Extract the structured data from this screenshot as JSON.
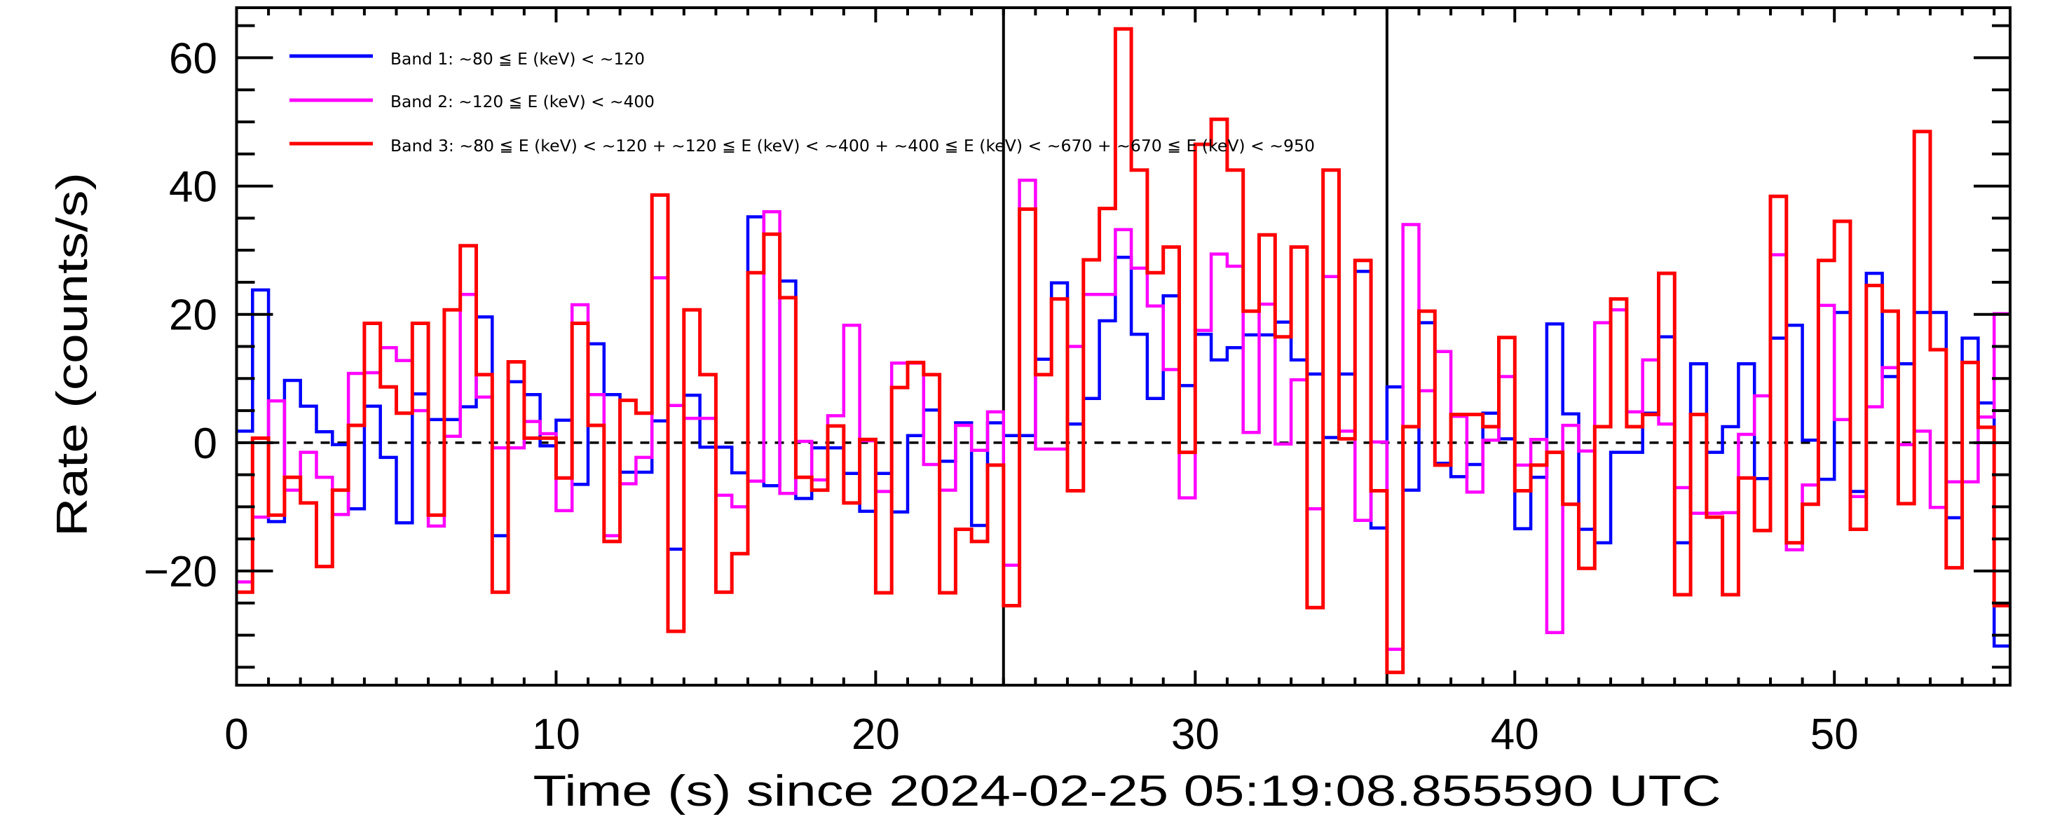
{
  "chart_data": {
    "type": "line",
    "step": true,
    "title": "",
    "xlabel": "Time (s) since 2024-02-25 05:19:08.855590 UTC",
    "ylabel": "Rate (counts/s)",
    "xlim": [
      0,
      55.5
    ],
    "ylim": [
      -37.8,
      67.8
    ],
    "grid": false,
    "bin_width": 0.5,
    "x_start": 0,
    "x_ticks": [
      {
        "value": 0,
        "label": "0"
      },
      {
        "value": 10,
        "label": "10"
      },
      {
        "value": 20,
        "label": "20"
      },
      {
        "value": 30,
        "label": "30"
      },
      {
        "value": 40,
        "label": "40"
      },
      {
        "value": 50,
        "label": "50"
      }
    ],
    "y_ticks": [
      {
        "value": -20,
        "label": "−20"
      },
      {
        "value": 0,
        "label": "0"
      },
      {
        "value": 20,
        "label": "20"
      },
      {
        "value": 40,
        "label": "40"
      },
      {
        "value": 60,
        "label": "60"
      }
    ],
    "x_minor_step": 1,
    "y_minor_step": 5,
    "reference_lines": {
      "horizontal_dashed": 0,
      "vertical": [
        24,
        36
      ]
    },
    "legend_placement": "top-left",
    "series": [
      {
        "name": "Band 1: ~80 ≦ E (keV) < ~120",
        "color": "#0000ff",
        "values": [
          1.8,
          23.8,
          -12.3,
          9.7,
          5.7,
          1.7,
          -0.3,
          -10.3,
          5.7,
          -2.3,
          -12.5,
          7.6,
          3.6,
          3.6,
          5.6,
          19.6,
          -14.5,
          9.5,
          7.5,
          -0.5,
          3.5,
          -6.5,
          15.4,
          7.5,
          -4.6,
          -4.6,
          3.4,
          -16.6,
          7.4,
          -0.7,
          -0.7,
          -4.7,
          35.2,
          -6.7,
          25.2,
          -8.7,
          -0.8,
          -0.8,
          -4.8,
          -10.7,
          -4.8,
          -10.8,
          1.1,
          5.1,
          -2.9,
          3.1,
          -12.9,
          3.1,
          1.1,
          1.1,
          13.0,
          24.9,
          2.9,
          6.9,
          19.0,
          28.9,
          16.9,
          6.9,
          22.9,
          8.9,
          16.9,
          12.9,
          14.8,
          16.8,
          16.8,
          18.8,
          12.9,
          10.7,
          0.8,
          10.7,
          26.7,
          -13.3,
          8.7,
          -7.4,
          18.7,
          -3.2,
          -5.3,
          -3.4,
          4.6,
          0.6,
          -13.4,
          -5.4,
          18.5,
          4.5,
          -13.5,
          -15.6,
          -1.5,
          -1.5,
          4.6,
          16.5,
          -15.6,
          12.3,
          -1.5,
          2.5,
          12.3,
          -5.6,
          16.3,
          18.3,
          0.4,
          -5.7,
          20.3,
          -7.6,
          26.4,
          10.3,
          12.3,
          20.3,
          20.3,
          -11.7,
          16.3,
          6.2,
          -31.7
        ]
      },
      {
        "name": "Band 2: ~120 ≦ E (keV) < ~400",
        "color": "#ff00ff",
        "values": [
          -21.7,
          -11.6,
          6.5,
          -7.4,
          -1.5,
          -5.4,
          -11.2,
          10.8,
          10.9,
          14.8,
          12.8,
          5.0,
          -13.0,
          1.0,
          23.1,
          7.1,
          -0.8,
          -0.8,
          3.3,
          1.4,
          -10.6,
          21.5,
          7.5,
          -14.5,
          -6.4,
          -2.3,
          25.7,
          5.8,
          3.8,
          3.8,
          -8.2,
          -10.0,
          -6.0,
          36.0,
          -7.9,
          0.2,
          -5.8,
          4.2,
          18.3,
          0.3,
          -7.6,
          12.4,
          12.4,
          -3.4,
          -7.4,
          2.7,
          -1.2,
          4.8,
          -19.1,
          40.9,
          -1.0,
          -1.0,
          15.0,
          23.1,
          23.1,
          33.2,
          27.2,
          21.3,
          11.4,
          -8.6,
          17.5,
          29.4,
          27.5,
          1.6,
          21.6,
          -0.2,
          9.8,
          -10.3,
          25.9,
          1.8,
          -12.1,
          0.1,
          -32.2,
          34.0,
          8.1,
          14.2,
          4.1,
          -7.7,
          0.4,
          10.3,
          -3.5,
          0.5,
          -29.6,
          2.7,
          -1.3,
          18.7,
          20.7,
          4.8,
          12.9,
          2.9,
          -7.0,
          -11.0,
          -11.0,
          -10.9,
          1.3,
          7.3,
          29.3,
          -16.7,
          -6.6,
          21.4,
          3.6,
          -8.4,
          5.6,
          11.7,
          -0.3,
          1.8,
          -10.1,
          -6.1,
          -6.1,
          4.0,
          20.1
        ]
      },
      {
        "name": "Band 3: ~80 ≦ E (keV) < ~120 + ~120 ≦ E (keV) < ~400 + ~400 ≦ E (keV) < ~670 + ~670 ≦ E (keV) < ~950",
        "color": "#ff0000",
        "values": [
          -23.3,
          0.7,
          -11.3,
          -5.4,
          -9.4,
          -19.3,
          -7.4,
          2.7,
          18.6,
          8.7,
          4.6,
          18.6,
          -11.3,
          20.7,
          30.7,
          10.6,
          -23.3,
          12.6,
          0.7,
          0.7,
          -5.5,
          18.6,
          2.7,
          -15.4,
          6.6,
          4.6,
          38.6,
          -29.4,
          20.7,
          10.6,
          -23.3,
          -17.3,
          26.5,
          32.5,
          22.6,
          -5.4,
          -7.4,
          2.6,
          -9.4,
          0.5,
          -23.4,
          8.6,
          12.5,
          10.6,
          -23.4,
          -13.5,
          -15.4,
          -3.5,
          -25.4,
          36.4,
          10.6,
          22.4,
          -7.5,
          28.5,
          36.5,
          64.5,
          42.5,
          26.5,
          30.5,
          -1.5,
          46.5,
          50.4,
          42.5,
          20.5,
          32.4,
          16.5,
          30.5,
          -25.7,
          42.5,
          0.6,
          28.4,
          -7.5,
          -35.8,
          2.5,
          20.5,
          -3.5,
          4.4,
          4.4,
          2.5,
          16.4,
          -7.5,
          -3.5,
          -1.5,
          -9.6,
          -19.6,
          2.5,
          22.4,
          2.5,
          4.4,
          26.4,
          -23.7,
          4.4,
          -11.6,
          -23.7,
          -5.5,
          -13.7,
          38.4,
          -15.6,
          -9.6,
          28.4,
          34.5,
          -13.5,
          24.5,
          20.5,
          -9.5,
          48.5,
          14.5,
          -19.5,
          12.5,
          2.4,
          -25.4
        ]
      }
    ]
  }
}
